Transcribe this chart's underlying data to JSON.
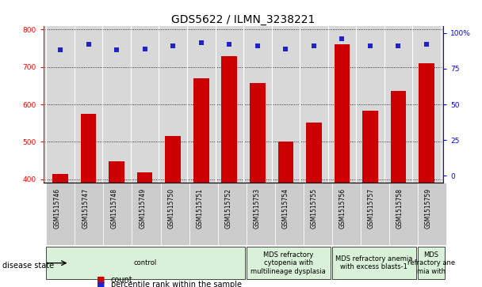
{
  "title": "GDS5622 / ILMN_3238221",
  "samples": [
    "GSM1515746",
    "GSM1515747",
    "GSM1515748",
    "GSM1515749",
    "GSM1515750",
    "GSM1515751",
    "GSM1515752",
    "GSM1515753",
    "GSM1515754",
    "GSM1515755",
    "GSM1515756",
    "GSM1515757",
    "GSM1515758",
    "GSM1515759"
  ],
  "counts": [
    415,
    575,
    448,
    418,
    515,
    670,
    730,
    658,
    500,
    552,
    760,
    583,
    637,
    710
  ],
  "percentile_values": [
    88.0,
    92.0,
    88.0,
    89.0,
    91.0,
    93.0,
    92.0,
    91.0,
    89.0,
    91.0,
    96.0,
    91.0,
    91.0,
    92.0
  ],
  "ylim_left": [
    390,
    810
  ],
  "ylim_right": [
    -5,
    105
  ],
  "yticks_left": [
    400,
    500,
    600,
    700,
    800
  ],
  "yticks_right": [
    0,
    25,
    50,
    75,
    100
  ],
  "bar_color": "#cc0000",
  "dot_color": "#2222cc",
  "bar_width": 0.55,
  "disease_groups": [
    {
      "label": "control",
      "start": 0,
      "end": 7,
      "color": "#d9f0d9"
    },
    {
      "label": "MDS refractory\ncytopenia with\nmultilineage dysplasia",
      "start": 7,
      "end": 10,
      "color": "#d9f0d9"
    },
    {
      "label": "MDS refractory anemia\nwith excess blasts-1",
      "start": 10,
      "end": 13,
      "color": "#d9f0d9"
    },
    {
      "label": "MDS\nrefractory ane\nmia with",
      "start": 13,
      "end": 14,
      "color": "#d9f0d9"
    }
  ],
  "disease_state_label": "disease state",
  "legend_count_label": "count",
  "legend_percentile_label": "percentile rank within the sample",
  "bg_color": "#ffffff",
  "plot_bg_color": "#d8d8d8",
  "sample_box_color": "#cccccc",
  "title_fontsize": 10,
  "tick_fontsize": 6.5,
  "disease_fontsize": 6.0
}
